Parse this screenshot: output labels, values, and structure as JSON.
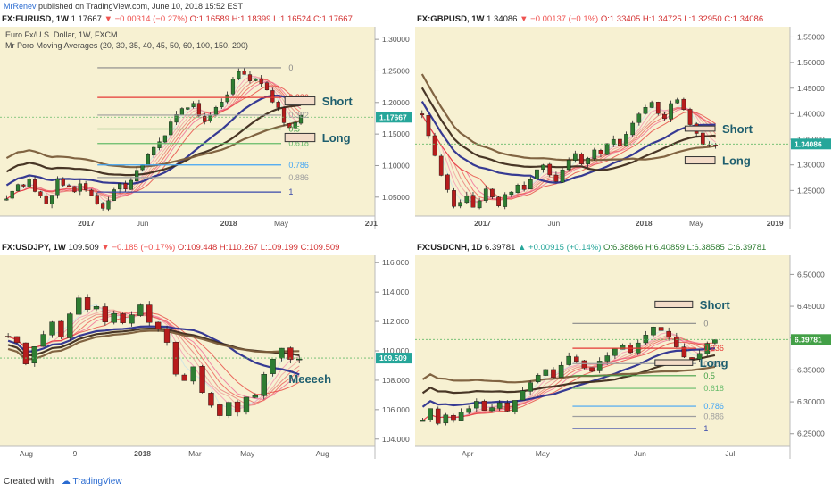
{
  "header": {
    "author": "MrRenev",
    "published": "published on TradingView.com, June 10, 2018 15:52 EST"
  },
  "footer": {
    "created_with": "Created with",
    "brand": "TradingView"
  },
  "panels": [
    {
      "id": "eurusd",
      "title": "FX:EURUSD, 1W",
      "last": "1.17667",
      "chg": "▼ −0.00314 (−0.27%)",
      "dir": "dn",
      "ohlc": {
        "o": "O:1.16589",
        "h": "H:1.18399",
        "l": "L:1.16524",
        "c": "C:1.17667"
      },
      "legend": [
        "Euro Fx/U.S. Dollar, 1W, FXCM",
        "Mr Poro Moving Averages (20, 30, 35, 40, 45, 50, 60, 100, 150, 200)"
      ],
      "price_labels": [
        "1.30000",
        "1.25000",
        "1.20000",
        "1.15000",
        "1.10000",
        "1.05000"
      ],
      "last_label": "1.17667",
      "time_labels": [
        "2017",
        "Jun",
        "2018",
        "May",
        "201"
      ],
      "fib": [
        {
          "label": "0",
          "color": "#888888"
        },
        {
          "label": "0.236",
          "color": "#e53935"
        },
        {
          "label": "0.382",
          "color": "#9e9e9e"
        },
        {
          "label": "0.5",
          "color": "#43a047"
        },
        {
          "label": "0.618",
          "color": "#66bb6a"
        },
        {
          "label": "0.786",
          "color": "#42a5f5"
        },
        {
          "label": "0.886",
          "color": "#9e9e9e"
        },
        {
          "label": "1",
          "color": "#3949ab"
        }
      ],
      "notes": [
        "Short",
        "Long"
      ]
    },
    {
      "id": "gbpusd",
      "title": "FX:GBPUSD, 1W",
      "last": "1.34086",
      "chg": "▼ −0.00137 (−0.1%)",
      "dir": "dn",
      "ohlc": {
        "o": "O:1.33405",
        "h": "H:1.34725",
        "l": "L:1.32950",
        "c": "C:1.34086"
      },
      "legend": [],
      "price_labels": [
        "1.55000",
        "1.50000",
        "1.45000",
        "1.40000",
        "1.35000",
        "1.30000",
        "1.25000"
      ],
      "last_label": "1.34086",
      "time_labels": [
        "2017",
        "Jun",
        "2018",
        "May",
        "2019"
      ],
      "fib": [],
      "notes": [
        "Short",
        "Long"
      ]
    },
    {
      "id": "usdjpy",
      "title": "FX:USDJPY, 1W",
      "last": "109.509",
      "chg": "▼ −0.185 (−0.17%)",
      "dir": "dn",
      "ohlc": {
        "o": "O:109.448",
        "h": "H:110.267",
        "l": "L:109.199",
        "c": "C:109.509"
      },
      "legend": [],
      "price_labels": [
        "116.000",
        "114.000",
        "112.000",
        "110.000",
        "108.000",
        "106.000",
        "104.000"
      ],
      "last_label": "109.509",
      "time_labels": [
        "Aug",
        "9",
        "2018",
        "Mar",
        "May",
        "Aug"
      ],
      "fib": [],
      "notes": [
        "Meeeeh"
      ]
    },
    {
      "id": "usdcnh",
      "title": "FX:USDCNH, 1D",
      "last": "6.39781",
      "chg": "▲ +0.00915 (+0.14%)",
      "dir": "up",
      "ohlc": {
        "o": "O:6.38866",
        "h": "H:6.40859",
        "l": "L:6.38585",
        "c": "C:6.39781"
      },
      "legend": [],
      "price_labels": [
        "6.50000",
        "6.45000",
        "6.40000",
        "6.35000",
        "6.30000",
        "6.25000"
      ],
      "last_label": "6.39781",
      "time_labels": [
        "Apr",
        "May",
        "Jun",
        "Jul"
      ],
      "fib": [
        {
          "label": "0",
          "color": "#888888"
        },
        {
          "label": "0.236",
          "color": "#e53935"
        },
        {
          "label": "0.382",
          "color": "#9e9e9e"
        },
        {
          "label": "0.5",
          "color": "#43a047"
        },
        {
          "label": "0.618",
          "color": "#66bb6a"
        },
        {
          "label": "0.786",
          "color": "#42a5f5"
        },
        {
          "label": "0.886",
          "color": "#9e9e9e"
        },
        {
          "label": "1",
          "color": "#3949ab"
        }
      ],
      "notes": [
        "Short",
        "Long"
      ]
    }
  ],
  "chart_data": [
    {
      "type": "candlestick",
      "symbol": "FX:EURUSD",
      "timeframe": "1W",
      "ylim": [
        1.02,
        1.32
      ],
      "last": 1.17667,
      "fib_levels": {
        "0": 1.255,
        "0.236": 1.208,
        "0.382": 1.18,
        "0.5": 1.158,
        "0.618": 1.135,
        "0.786": 1.101,
        "0.886": 1.081,
        "1": 1.058
      },
      "zones": [
        {
          "name": "Short",
          "low": 1.196,
          "high": 1.209
        },
        {
          "name": "Long",
          "low": 1.138,
          "high": 1.151
        }
      ],
      "path": [
        1.045,
        1.06,
        1.07,
        1.065,
        1.08,
        1.06,
        1.05,
        1.04,
        1.055,
        1.08,
        1.07,
        1.065,
        1.06,
        1.07,
        1.06,
        1.05,
        1.04,
        1.03,
        1.045,
        1.06,
        1.07,
        1.065,
        1.075,
        1.09,
        1.1,
        1.12,
        1.13,
        1.14,
        1.15,
        1.17,
        1.18,
        1.19,
        1.19,
        1.2,
        1.18,
        1.17,
        1.18,
        1.19,
        1.2,
        1.21,
        1.24,
        1.25,
        1.245,
        1.235,
        1.24,
        1.23,
        1.22,
        1.2,
        1.19,
        1.17,
        1.16,
        1.17,
        1.177
      ]
    },
    {
      "type": "candlestick",
      "symbol": "FX:GBPUSD",
      "timeframe": "1W",
      "ylim": [
        1.2,
        1.57
      ],
      "last": 1.34086,
      "zones": [
        {
          "name": "Short",
          "low": 1.366,
          "high": 1.376
        },
        {
          "name": "Long",
          "low": 1.302,
          "high": 1.316
        }
      ],
      "path": [
        1.4,
        1.36,
        1.32,
        1.28,
        1.25,
        1.22,
        1.23,
        1.24,
        1.22,
        1.23,
        1.25,
        1.24,
        1.22,
        1.24,
        1.25,
        1.26,
        1.25,
        1.27,
        1.29,
        1.3,
        1.28,
        1.27,
        1.29,
        1.31,
        1.32,
        1.3,
        1.31,
        1.33,
        1.32,
        1.34,
        1.35,
        1.34,
        1.36,
        1.38,
        1.4,
        1.41,
        1.42,
        1.4,
        1.39,
        1.42,
        1.43,
        1.41,
        1.38,
        1.36,
        1.34,
        1.335,
        1.341
      ]
    },
    {
      "type": "candlestick",
      "symbol": "FX:USDJPY",
      "timeframe": "1W",
      "ylim": [
        103.5,
        116.5
      ],
      "last": 109.509,
      "path": [
        111.0,
        110.5,
        109.0,
        110.2,
        111.2,
        112.0,
        111.0,
        112.5,
        113.5,
        112.8,
        113.0,
        112.0,
        112.5,
        111.8,
        112.5,
        113.2,
        112.0,
        111.5,
        110.5,
        108.5,
        108.0,
        109.0,
        107.2,
        106.2,
        105.5,
        106.5,
        105.8,
        106.8,
        107.0,
        108.5,
        109.5,
        110.2,
        109.5,
        109.509
      ]
    },
    {
      "type": "candlestick",
      "symbol": "FX:USDCNH",
      "timeframe": "1D",
      "ylim": [
        6.23,
        6.53
      ],
      "last": 6.39781,
      "fib_levels": {
        "0": 6.423,
        "0.236": 6.384,
        "0.382": 6.36,
        "0.5": 6.341,
        "0.618": 6.321,
        "0.786": 6.293,
        "0.886": 6.277,
        "1": 6.258
      },
      "zones": [
        {
          "name": "Short",
          "low": 6.448,
          "high": 6.458
        },
        {
          "name": "Long",
          "low": 6.357,
          "high": 6.366
        }
      ],
      "path": [
        6.27,
        6.29,
        6.265,
        6.28,
        6.27,
        6.285,
        6.29,
        6.3,
        6.285,
        6.29,
        6.3,
        6.285,
        6.3,
        6.32,
        6.33,
        6.34,
        6.35,
        6.34,
        6.36,
        6.37,
        6.365,
        6.355,
        6.35,
        6.365,
        6.37,
        6.385,
        6.39,
        6.38,
        6.39,
        6.405,
        6.42,
        6.41,
        6.4,
        6.385,
        6.37,
        6.365,
        6.375,
        6.39,
        6.398
      ]
    }
  ]
}
